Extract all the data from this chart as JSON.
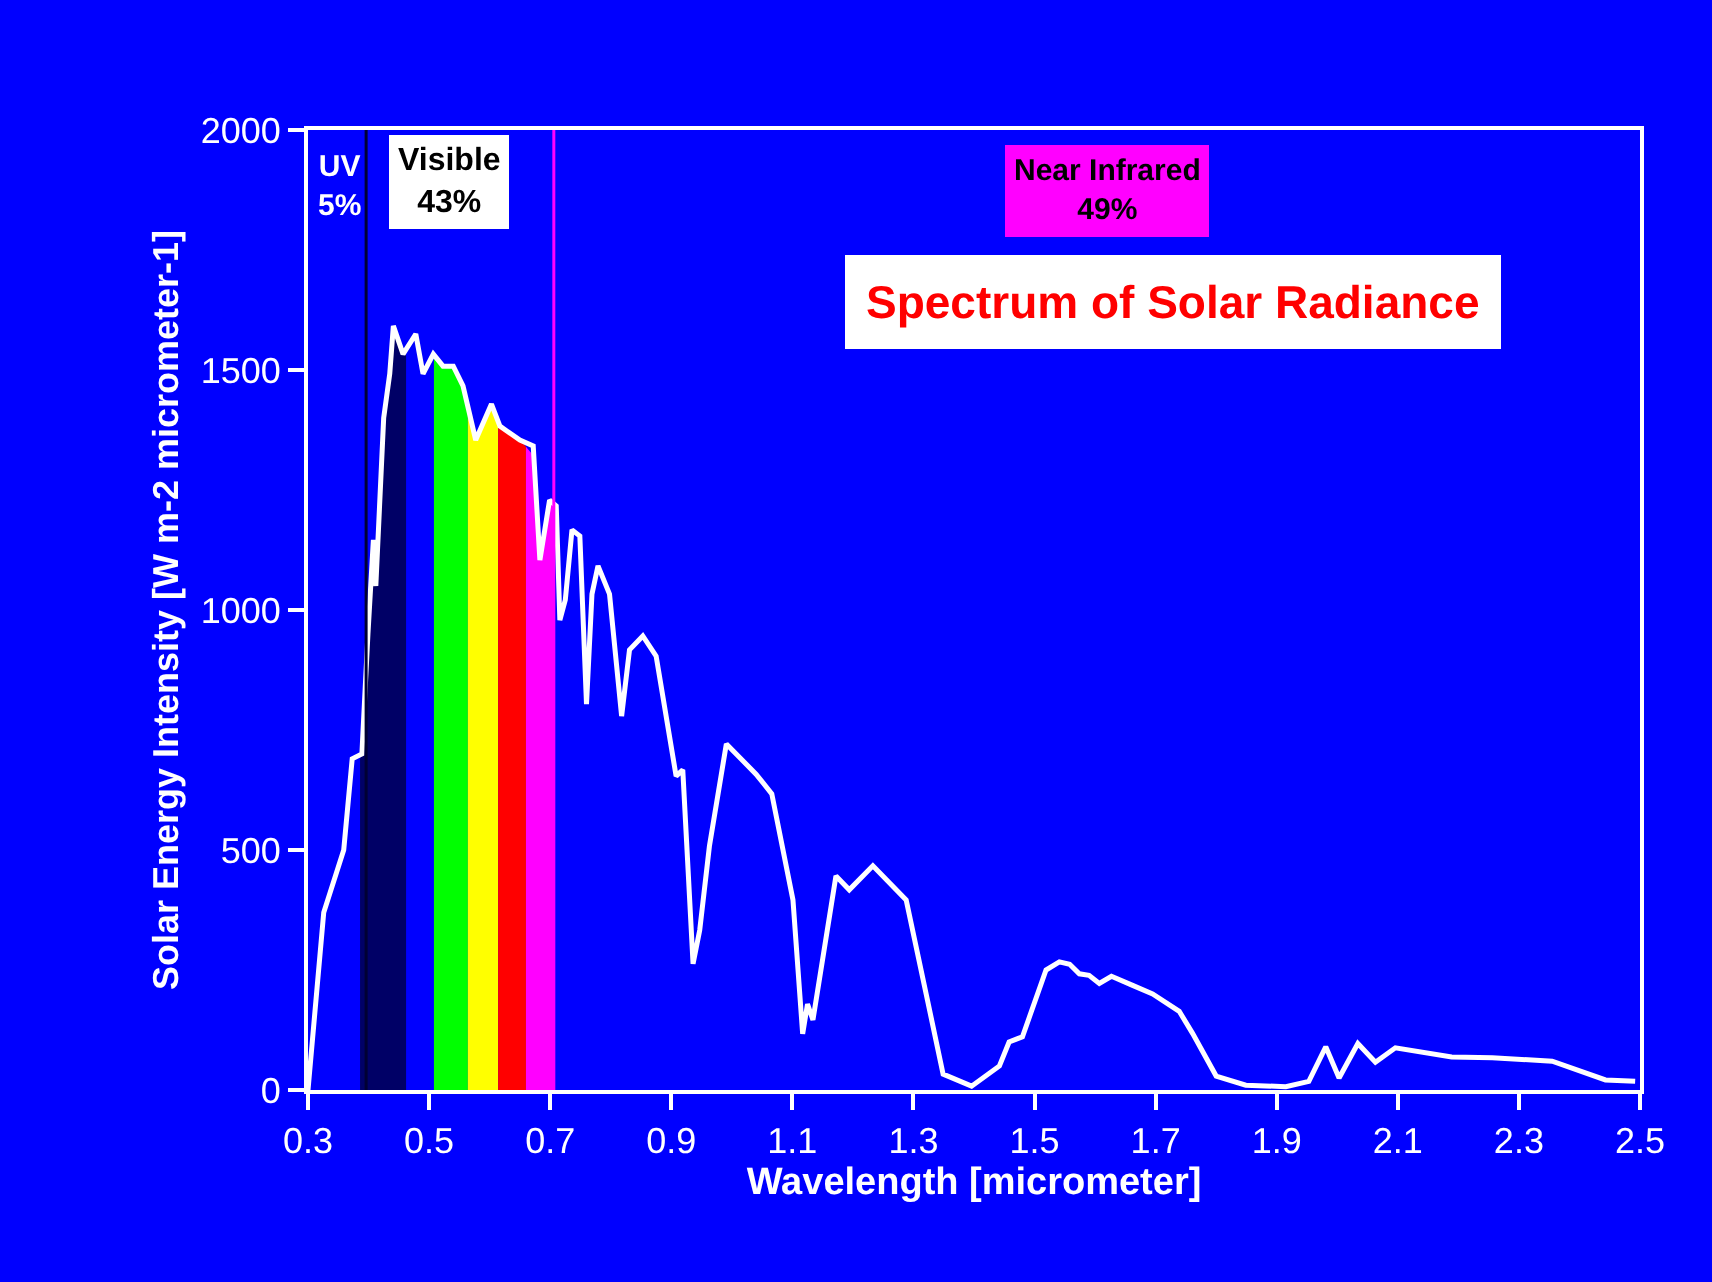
{
  "chart_data": {
    "type": "line",
    "title": "Spectrum of Solar Radiance",
    "xlabel": "Wavelength [micrometer]",
    "ylabel": "Solar Energy Intensity [W m-2 micrometer-1]",
    "annotations": [
      "UV\n5%",
      "Visible\n43%",
      "Near Infrared\n49%"
    ],
    "xlim": [
      0.3,
      2.5
    ],
    "xticks": [
      0.3,
      0.5,
      0.7,
      0.9,
      1.1,
      1.3,
      1.5,
      1.7,
      1.9,
      2.1,
      2.3,
      2.5
    ],
    "ylim": [
      0,
      2000
    ],
    "yticks": [
      0,
      500,
      1000,
      1500,
      2000
    ],
    "grid": false,
    "marker": "none",
    "line_style": "solid",
    "ref_lines": [
      {
        "axis": "x",
        "value": 0.396,
        "color": "#000033"
      },
      {
        "axis": "x",
        "value": 0.706,
        "color": "#ff00ff"
      }
    ],
    "series": [
      {
        "type": "area",
        "color": "#000066",
        "x": [
          0.386,
          0.389,
          0.399,
          0.408,
          0.412,
          0.425,
          0.435,
          0.441,
          0.457,
          0.462
        ],
        "values": [
          690,
          700,
          950,
          1146,
          1050,
          1400,
          1492,
          1592,
          1533,
          1540
        ]
      },
      {
        "type": "area",
        "color": "#00ff00",
        "x": [
          0.508,
          0.523,
          0.54,
          0.556,
          0.564
        ],
        "values": [
          1533,
          1508,
          1508,
          1467,
          1420
        ]
      },
      {
        "type": "area",
        "color": "#ffff00",
        "x": [
          0.564,
          0.577,
          0.603,
          0.614
        ],
        "values": [
          1420,
          1354,
          1429,
          1390
        ]
      },
      {
        "type": "area",
        "color": "#ff0000",
        "x": [
          0.614,
          0.617,
          0.65,
          0.66
        ],
        "values": [
          1390,
          1383,
          1354,
          1340
        ]
      },
      {
        "type": "area",
        "color": "#ff00ff",
        "x": [
          0.66,
          0.67,
          0.683,
          0.699,
          0.706
        ],
        "values": [
          1340,
          1325,
          1133,
          1229,
          1225
        ]
      },
      {
        "color": "#ffffff",
        "x": [
          0.3,
          0.326,
          0.359,
          0.373,
          0.389,
          0.399,
          0.408,
          0.412,
          0.425,
          0.435,
          0.441,
          0.457,
          0.478,
          0.49,
          0.507,
          0.523,
          0.54,
          0.556,
          0.577,
          0.603,
          0.617,
          0.65,
          0.672,
          0.683,
          0.699,
          0.71,
          0.716,
          0.725,
          0.736,
          0.749,
          0.76,
          0.769,
          0.779,
          0.798,
          0.818,
          0.831,
          0.853,
          0.875,
          0.908,
          0.919,
          0.936,
          0.947,
          0.963,
          0.991,
          1.04,
          1.066,
          1.101,
          1.117,
          1.125,
          1.134,
          1.172,
          1.194,
          1.233,
          1.288,
          1.321,
          1.349,
          1.396,
          1.442,
          1.458,
          1.48,
          1.519,
          1.541,
          1.558,
          1.574,
          1.59,
          1.607,
          1.627,
          1.662,
          1.695,
          1.739,
          1.761,
          1.8,
          1.849,
          1.915,
          1.953,
          1.981,
          2.003,
          2.034,
          2.063,
          2.096,
          2.189,
          2.256,
          2.355,
          2.443,
          2.492
        ],
        "values": [
          0,
          370,
          500,
          690,
          700,
          950,
          1146,
          1050,
          1400,
          1492,
          1592,
          1533,
          1575,
          1492,
          1533,
          1508,
          1508,
          1467,
          1354,
          1429,
          1383,
          1354,
          1342,
          1104,
          1229,
          1217,
          979,
          1021,
          1167,
          1154,
          804,
          1033,
          1092,
          1033,
          779,
          917,
          946,
          904,
          654,
          667,
          263,
          333,
          508,
          721,
          658,
          617,
          396,
          117,
          179,
          146,
          446,
          417,
          467,
          396,
          200,
          33,
          8,
          50,
          100,
          111,
          250,
          267,
          262,
          242,
          239,
          222,
          237,
          218,
          200,
          164,
          118,
          29,
          10,
          7,
          18,
          90,
          25,
          97,
          58,
          88,
          69,
          67,
          60,
          21,
          18
        ]
      }
    ]
  }
}
